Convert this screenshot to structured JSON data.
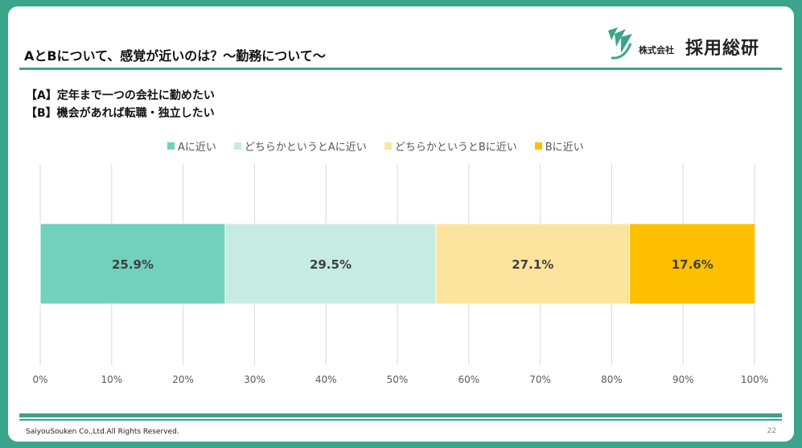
{
  "slide": {
    "title": "AとBについて、感覚が近いのは？～勤務について～",
    "question_a": "【A】定年まで一つの会社に勤めたい",
    "question_b": "【B】機会があれば転職・独立したい",
    "copyright": "SaiyouSouken Co.,Ltd.All Rights Reserved.",
    "page_number": "22"
  },
  "logo": {
    "small_text": "株式会社",
    "big_text": "採用総研",
    "mark_icon": "leaf-swirl-icon",
    "color": "#3aa58a"
  },
  "chart_data": {
    "type": "bar",
    "orientation": "horizontal",
    "stacked": true,
    "categories": [
      ""
    ],
    "series": [
      {
        "name": "Aに近い",
        "values": [
          25.9
        ],
        "label": "25.9%",
        "color": "#72d1bc"
      },
      {
        "name": "どちらかというとAに近い",
        "values": [
          29.5
        ],
        "label": "29.5%",
        "color": "#c6ece2"
      },
      {
        "name": "どちらかというとBに近い",
        "values": [
          27.1
        ],
        "label": "27.1%",
        "color": "#fde49e"
      },
      {
        "name": "Bに近い",
        "values": [
          17.6
        ],
        "label": "17.6%",
        "color": "#fdbf00"
      }
    ],
    "xlim": [
      0,
      100
    ],
    "xticks": [
      "0%",
      "10%",
      "20%",
      "30%",
      "40%",
      "50%",
      "60%",
      "70%",
      "80%",
      "90%",
      "100%"
    ],
    "grid": true,
    "legend": "top"
  }
}
